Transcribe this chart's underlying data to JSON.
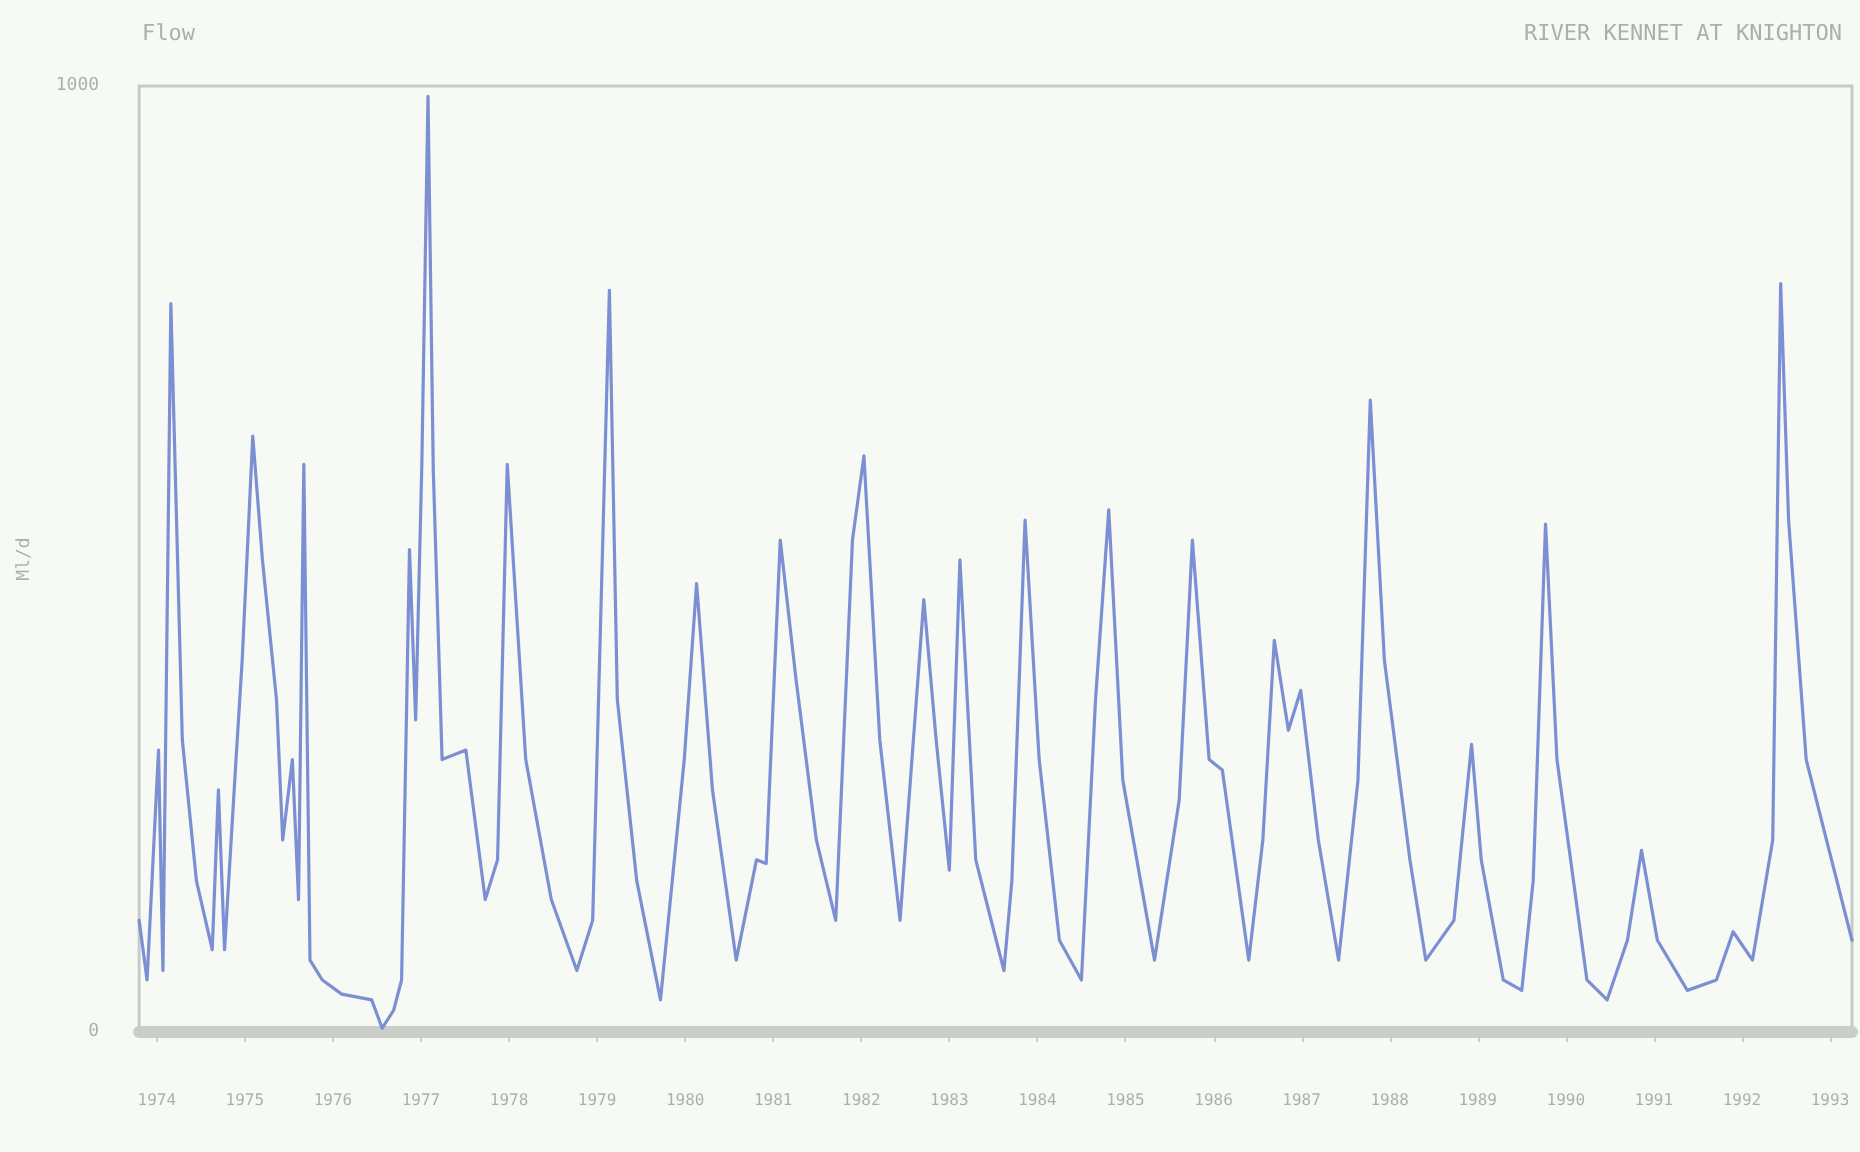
{
  "chart_data": {
    "type": "line",
    "title": "Flow",
    "subtitle": "RIVER KENNET AT KNIGHTON",
    "ylabel": "Ml/d",
    "x": [
      1973.8,
      1973.89,
      1974.02,
      1974.07,
      1974.16,
      1974.29,
      1974.45,
      1974.63,
      1974.7,
      1974.77,
      1974.9,
      1974.97,
      1975.09,
      1975.2,
      1975.36,
      1975.43,
      1975.54,
      1975.61,
      1975.67,
      1975.74,
      1975.88,
      1976.1,
      1976.44,
      1976.56,
      1976.69,
      1976.78,
      1976.87,
      1976.94,
      1977.01,
      1977.08,
      1977.14,
      1977.24,
      1977.51,
      1977.73,
      1977.87,
      1977.98,
      1978.19,
      1978.48,
      1978.77,
      1978.95,
      1979.14,
      1979.23,
      1979.45,
      1979.72,
      1979.99,
      1980.13,
      1980.31,
      1980.58,
      1980.81,
      1980.92,
      1981.08,
      1981.26,
      1981.49,
      1981.71,
      1981.9,
      1982.03,
      1982.21,
      1982.44,
      1982.71,
      1982.85,
      1983.0,
      1983.12,
      1983.3,
      1983.62,
      1983.71,
      1983.86,
      1984.02,
      1984.25,
      1984.5,
      1984.66,
      1984.81,
      1984.97,
      1985.33,
      1985.61,
      1985.76,
      1985.95,
      1986.1,
      1986.4,
      1986.56,
      1986.69,
      1986.85,
      1986.99,
      1987.19,
      1987.42,
      1987.64,
      1987.78,
      1987.94,
      1988.23,
      1988.41,
      1988.73,
      1988.93,
      1989.04,
      1989.29,
      1989.5,
      1989.63,
      1989.77,
      1989.9,
      1990.24,
      1990.47,
      1990.7,
      1990.86,
      1991.04,
      1991.38,
      1991.71,
      1991.9,
      1992.12,
      1992.35,
      1992.44,
      1992.53,
      1992.73,
      1992.96,
      1993.25
    ],
    "series": [
      {
        "color": "#7b8fd2",
        "values": [
          118,
          55,
          298,
          65,
          770,
          309,
          160,
          87,
          256,
          87,
          288,
          393,
          630,
          499,
          351,
          203,
          288,
          140,
          600,
          76,
          55,
          40,
          34,
          4,
          23,
          55,
          510,
          330,
          600,
          989,
          594,
          288,
          298,
          140,
          182,
          600,
          288,
          140,
          65,
          118,
          784,
          351,
          160,
          34,
          288,
          474,
          256,
          76,
          182,
          178,
          520,
          372,
          203,
          118,
          520,
          609,
          309,
          118,
          457,
          309,
          171,
          499,
          182,
          65,
          160,
          541,
          288,
          97,
          55,
          351,
          552,
          266,
          76,
          245,
          520,
          288,
          277,
          76,
          203,
          414,
          319,
          361,
          203,
          76,
          266,
          668,
          393,
          182,
          76,
          118,
          304,
          182,
          55,
          44,
          160,
          537,
          288,
          55,
          34,
          97,
          192,
          97,
          44,
          55,
          106,
          76,
          203,
          791,
          541,
          288,
          203,
          97
        ]
      }
    ],
    "xlim": [
      1973.8,
      1993.25
    ],
    "xticks": [
      1974,
      1975,
      1976,
      1977,
      1978,
      1979,
      1980,
      1981,
      1982,
      1983,
      1984,
      1985,
      1986,
      1987,
      1988,
      1989,
      1990,
      1991,
      1992,
      1993
    ],
    "ylim": [
      0,
      1000
    ],
    "yticks": [
      0,
      1000
    ],
    "marker": "none",
    "line_style": "solid"
  }
}
